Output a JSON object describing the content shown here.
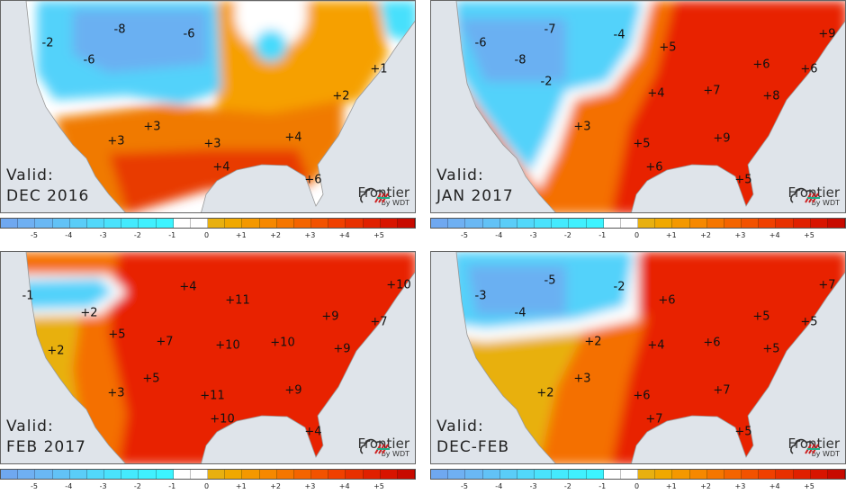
{
  "valid_prefix": "Valid:",
  "logo": {
    "name": "Frontier",
    "by": "by WDT"
  },
  "colorbar": {
    "ticks": [
      "-5",
      "-4",
      "-3",
      "-2",
      "-1",
      "0",
      "+1",
      "+2",
      "+3",
      "+4",
      "+5"
    ],
    "colors": [
      "#6fa8f0",
      "#6fb0f2",
      "#6ab8f4",
      "#62c2f6",
      "#5acdf8",
      "#52d8fa",
      "#4ae2fc",
      "#44eafd",
      "#40f0fe",
      "#3cf4ff",
      "",
      "",
      "#e8b010",
      "#f0a800",
      "#f49800",
      "#f68800",
      "#f57600",
      "#f46400",
      "#f25200",
      "#f04000",
      "#e83000",
      "#e02000",
      "#d81400",
      "#c80a00"
    ]
  },
  "panels": [
    {
      "valid": "DEC 2016",
      "labels": [
        "-2",
        "-8",
        "-6",
        "-6",
        "+1",
        "+2",
        "+3",
        "+3",
        "+3",
        "+4",
        "+4",
        "+6"
      ]
    },
    {
      "valid": "JAN 2017",
      "labels": [
        "-6",
        "-7",
        "-4",
        "-8",
        "-2",
        "+5",
        "+6",
        "+9",
        "+6",
        "+4",
        "+7",
        "+8",
        "+3",
        "+9",
        "+5",
        "+6",
        "+5"
      ]
    },
    {
      "valid": "FEB 2017",
      "labels": [
        "-1",
        "+4",
        "+2",
        "+11",
        "+10",
        "+5",
        "+7",
        "+9",
        "+7",
        "+10",
        "+10",
        "+9",
        "+2",
        "+5",
        "+3",
        "+11",
        "+9",
        "+10",
        "+4"
      ]
    },
    {
      "valid": "DEC-FEB",
      "labels": [
        "-3",
        "-5",
        "-2",
        "-4",
        "+6",
        "+7",
        "+5",
        "+5",
        "+2",
        "+4",
        "+6",
        "+5",
        "+2",
        "+3",
        "+6",
        "+7",
        "+7",
        "+5"
      ]
    }
  ]
}
